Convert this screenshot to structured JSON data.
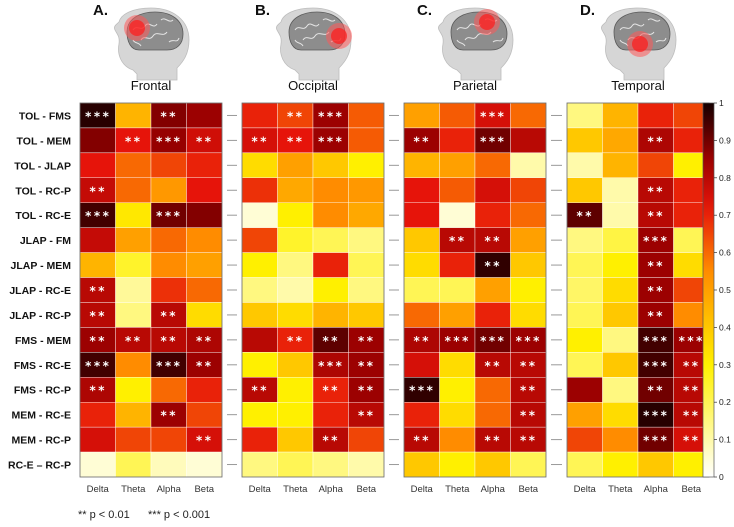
{
  "chart_data": {
    "type": "heatmap",
    "colormap": "hot (reversed): 0 = white, 1 = black",
    "rows": [
      "TOL - FMS",
      "TOL - MEM",
      "TOL - JLAP",
      "TOL - RC-P",
      "TOL - RC-E",
      "JLAP - FM",
      "JLAP - MEM",
      "JLAP - RC-E",
      "JLAP - RC-P",
      "FMS - MEM",
      "FMS - RC-E",
      "FMS - RC-P",
      "MEM - RC-E",
      "MEM - RC-P",
      "RC-E – RC-P"
    ],
    "columns": [
      "Delta",
      "Theta",
      "Alpha",
      "Beta"
    ],
    "colorbar": {
      "range": [
        0,
        1
      ],
      "ticks": [
        "0",
        "0.1",
        "0.2",
        "0.3",
        "0.4",
        "0.5",
        "0.6",
        "0.7",
        "0.8",
        "0.9",
        "1"
      ]
    },
    "significance_legend": {
      "double": "** p < 0.01",
      "triple": "*** p < 0.001"
    },
    "panels": [
      {
        "letter": "A.",
        "region": "Frontal",
        "highlight": "front",
        "values": [
          [
            0.98,
            0.45,
            0.88,
            0.85
          ],
          [
            0.88,
            0.72,
            0.86,
            0.76
          ],
          [
            0.72,
            0.6,
            0.65,
            0.7
          ],
          [
            0.78,
            0.6,
            0.52,
            0.72
          ],
          [
            0.95,
            0.32,
            0.9,
            0.88
          ],
          [
            0.78,
            0.5,
            0.6,
            0.55
          ],
          [
            0.45,
            0.25,
            0.55,
            0.5
          ],
          [
            0.8,
            0.12,
            0.68,
            0.6
          ],
          [
            0.8,
            0.15,
            0.8,
            0.35
          ],
          [
            0.85,
            0.8,
            0.8,
            0.82
          ],
          [
            0.95,
            0.55,
            0.95,
            0.85
          ],
          [
            0.82,
            0.3,
            0.6,
            0.7
          ],
          [
            0.7,
            0.45,
            0.85,
            0.65
          ],
          [
            0.75,
            0.65,
            0.65,
            0.75
          ],
          [
            0.05,
            0.2,
            0.08,
            0.05
          ]
        ],
        "sig": [
          [
            "***",
            "",
            "**",
            ""
          ],
          [
            "",
            "**",
            "***",
            "**"
          ],
          [
            "",
            "",
            "",
            ""
          ],
          [
            "**",
            "",
            "",
            ""
          ],
          [
            "***",
            "",
            "***",
            ""
          ],
          [
            "",
            "",
            "",
            ""
          ],
          [
            "",
            "",
            "",
            ""
          ],
          [
            "**",
            "",
            "",
            ""
          ],
          [
            "**",
            "",
            "**",
            ""
          ],
          [
            "**",
            "**",
            "**",
            "**"
          ],
          [
            "***",
            "",
            "***",
            "**"
          ],
          [
            "**",
            "",
            "",
            ""
          ],
          [
            "",
            "",
            "**",
            ""
          ],
          [
            "",
            "",
            "",
            "**"
          ],
          [
            "",
            "",
            "",
            ""
          ]
        ]
      },
      {
        "letter": "B.",
        "region": "Occipital",
        "highlight": "back",
        "values": [
          [
            0.7,
            0.65,
            0.85,
            0.62
          ],
          [
            0.75,
            0.72,
            0.85,
            0.62
          ],
          [
            0.35,
            0.5,
            0.4,
            0.3
          ],
          [
            0.68,
            0.48,
            0.55,
            0.52
          ],
          [
            0.05,
            0.3,
            0.55,
            0.48
          ],
          [
            0.65,
            0.25,
            0.2,
            0.15
          ],
          [
            0.3,
            0.15,
            0.7,
            0.2
          ],
          [
            0.15,
            0.1,
            0.3,
            0.15
          ],
          [
            0.4,
            0.35,
            0.45,
            0.4
          ],
          [
            0.8,
            0.7,
            0.92,
            0.85
          ],
          [
            0.3,
            0.4,
            0.82,
            0.85
          ],
          [
            0.8,
            0.3,
            0.7,
            0.85
          ],
          [
            0.3,
            0.3,
            0.7,
            0.8
          ],
          [
            0.7,
            0.4,
            0.8,
            0.65
          ],
          [
            0.15,
            0.2,
            0.15,
            0.1
          ]
        ],
        "sig": [
          [
            "",
            "**",
            "***",
            ""
          ],
          [
            "**",
            "**",
            "***",
            ""
          ],
          [
            "",
            "",
            "",
            ""
          ],
          [
            "",
            "",
            "",
            ""
          ],
          [
            "",
            "",
            "",
            ""
          ],
          [
            "",
            "",
            "",
            ""
          ],
          [
            "",
            "",
            "",
            ""
          ],
          [
            "",
            "",
            "",
            ""
          ],
          [
            "",
            "",
            "",
            ""
          ],
          [
            "",
            "**",
            "**",
            "**"
          ],
          [
            "",
            "",
            "***",
            "**"
          ],
          [
            "**",
            "",
            "**",
            "**"
          ],
          [
            "",
            "",
            "",
            "**"
          ],
          [
            "",
            "",
            "**",
            ""
          ],
          [
            "",
            "",
            "",
            ""
          ]
        ]
      },
      {
        "letter": "C.",
        "region": "Parietal",
        "highlight": "top",
        "values": [
          [
            0.5,
            0.62,
            0.75,
            0.6
          ],
          [
            0.85,
            0.7,
            0.9,
            0.8
          ],
          [
            0.45,
            0.5,
            0.6,
            0.1
          ],
          [
            0.72,
            0.62,
            0.75,
            0.65
          ],
          [
            0.72,
            0.05,
            0.7,
            0.6
          ],
          [
            0.4,
            0.8,
            0.8,
            0.5
          ],
          [
            0.35,
            0.7,
            0.97,
            0.4
          ],
          [
            0.2,
            0.2,
            0.5,
            0.3
          ],
          [
            0.6,
            0.5,
            0.7,
            0.35
          ],
          [
            0.82,
            0.85,
            0.9,
            0.85
          ],
          [
            0.75,
            0.35,
            0.8,
            0.8
          ],
          [
            0.97,
            0.3,
            0.6,
            0.8
          ],
          [
            0.7,
            0.35,
            0.6,
            0.8
          ],
          [
            0.8,
            0.55,
            0.8,
            0.8
          ],
          [
            0.4,
            0.3,
            0.4,
            0.2
          ]
        ],
        "sig": [
          [
            "",
            "",
            "***",
            ""
          ],
          [
            "**",
            "",
            "***",
            ""
          ],
          [
            "",
            "",
            "",
            ""
          ],
          [
            "",
            "",
            "",
            ""
          ],
          [
            "",
            "",
            "",
            ""
          ],
          [
            "",
            "**",
            "**",
            ""
          ],
          [
            "",
            "",
            "**",
            ""
          ],
          [
            "",
            "",
            "",
            ""
          ],
          [
            "",
            "",
            "",
            ""
          ],
          [
            "**",
            "***",
            "***",
            "***"
          ],
          [
            "",
            "",
            "**",
            "**"
          ],
          [
            "***",
            "",
            "",
            "**"
          ],
          [
            "",
            "",
            "",
            "**"
          ],
          [
            "**",
            "",
            "**",
            "**"
          ],
          [
            "",
            "",
            "",
            ""
          ]
        ]
      },
      {
        "letter": "D.",
        "region": "Temporal",
        "highlight": "side",
        "values": [
          [
            0.15,
            0.45,
            0.7,
            0.65
          ],
          [
            0.4,
            0.48,
            0.82,
            0.7
          ],
          [
            0.1,
            0.45,
            0.65,
            0.3
          ],
          [
            0.4,
            0.1,
            0.8,
            0.7
          ],
          [
            0.92,
            0.1,
            0.8,
            0.7
          ],
          [
            0.15,
            0.22,
            0.85,
            0.2
          ],
          [
            0.2,
            0.3,
            0.85,
            0.35
          ],
          [
            0.18,
            0.35,
            0.85,
            0.65
          ],
          [
            0.2,
            0.4,
            0.85,
            0.55
          ],
          [
            0.3,
            0.15,
            0.95,
            0.85
          ],
          [
            0.2,
            0.4,
            0.95,
            0.8
          ],
          [
            0.85,
            0.15,
            0.9,
            0.8
          ],
          [
            0.5,
            0.35,
            0.98,
            0.8
          ],
          [
            0.65,
            0.55,
            0.9,
            0.75
          ],
          [
            0.2,
            0.3,
            0.4,
            0.3
          ]
        ],
        "sig": [
          [
            "",
            "",
            "",
            ""
          ],
          [
            "",
            "",
            "**",
            ""
          ],
          [
            "",
            "",
            "",
            ""
          ],
          [
            "",
            "",
            "**",
            ""
          ],
          [
            "**",
            "",
            "**",
            ""
          ],
          [
            "",
            "",
            "***",
            ""
          ],
          [
            "",
            "",
            "**",
            ""
          ],
          [
            "",
            "",
            "**",
            ""
          ],
          [
            "",
            "",
            "**",
            ""
          ],
          [
            "",
            "",
            "***",
            "***"
          ],
          [
            "",
            "",
            "***",
            "**"
          ],
          [
            "",
            "",
            "**",
            "**"
          ],
          [
            "",
            "",
            "***",
            "**"
          ],
          [
            "",
            "",
            "***",
            "**"
          ],
          [
            "",
            "",
            "",
            ""
          ]
        ]
      }
    ]
  }
}
